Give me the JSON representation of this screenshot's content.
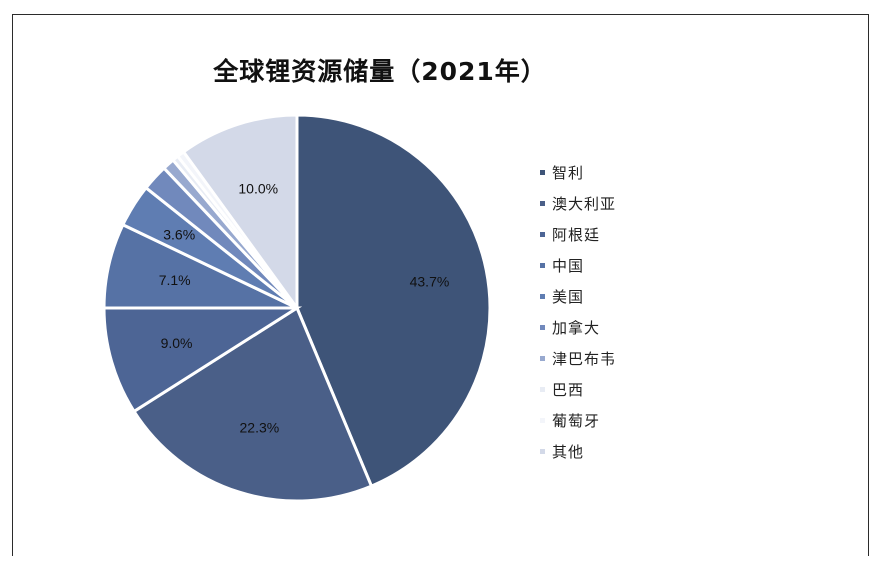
{
  "chart_data": {
    "type": "pie",
    "title": "全球锂资源储量（2021年）",
    "categories": [
      "智利",
      "澳大利亚",
      "阿根廷",
      "中国",
      "美国",
      "加拿大",
      "津巴布韦",
      "巴西",
      "葡萄牙",
      "其他"
    ],
    "values": [
      43.7,
      22.3,
      9.0,
      7.1,
      3.6,
      2.2,
      1.0,
      0.5,
      0.6,
      10.0
    ],
    "labels": [
      "43.7%",
      "22.3%",
      "9.0%",
      "7.1%",
      "3.6%",
      "",
      "",
      "",
      "",
      "10.0%"
    ],
    "colors": [
      "#3e5478",
      "#4a5f88",
      "#4d6595",
      "#5672a5",
      "#5f7db2",
      "#7189bc",
      "#98a9cf",
      "#e8ecf4",
      "#f3f5fa",
      "#d3d9e8"
    ],
    "legend_position": "right",
    "start_angle": "12 o'clock, clockwise"
  }
}
